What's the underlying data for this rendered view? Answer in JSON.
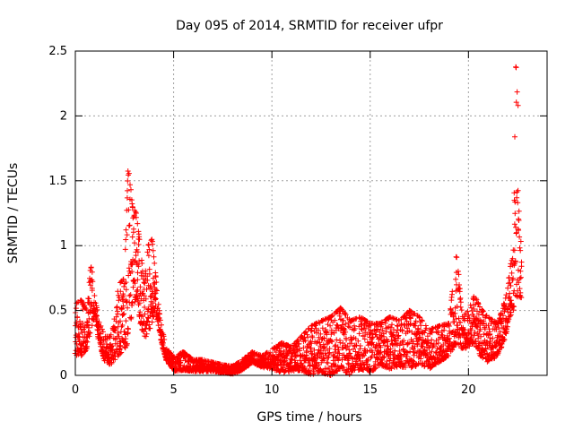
{
  "chart_data": {
    "type": "scatter",
    "title": "Day 095 of 2014, SRMTID for receiver ufpr",
    "xlabel": "GPS time / hours",
    "ylabel": "SRMTID / TECUs",
    "xlim": [
      0,
      24
    ],
    "ylim": [
      0,
      2.5
    ],
    "xticks": [
      0,
      5,
      10,
      15,
      20
    ],
    "yticks": [
      0,
      0.5,
      1,
      1.5,
      2,
      2.5
    ],
    "grid": true,
    "marker": "+",
    "series": [
      {
        "name": "SRMTID",
        "color": "#ff0000",
        "envelope": [
          [
            0.0,
            0.15,
            0.55
          ],
          [
            0.3,
            0.15,
            0.58
          ],
          [
            0.6,
            0.2,
            0.5
          ],
          [
            0.8,
            0.35,
            0.88
          ],
          [
            1.0,
            0.45,
            0.6
          ],
          [
            1.2,
            0.25,
            0.42
          ],
          [
            1.5,
            0.1,
            0.3
          ],
          [
            1.8,
            0.08,
            0.3
          ],
          [
            2.0,
            0.12,
            0.45
          ],
          [
            2.2,
            0.15,
            0.7
          ],
          [
            2.5,
            0.2,
            0.75
          ],
          [
            2.7,
            0.25,
            1.68
          ],
          [
            2.9,
            0.5,
            1.3
          ],
          [
            3.1,
            0.6,
            1.25
          ],
          [
            3.3,
            0.4,
            1.0
          ],
          [
            3.5,
            0.3,
            0.7
          ],
          [
            3.7,
            0.3,
            1.0
          ],
          [
            3.9,
            0.4,
            1.05
          ],
          [
            4.1,
            0.5,
            0.75
          ],
          [
            4.3,
            0.3,
            0.45
          ],
          [
            4.6,
            0.12,
            0.22
          ],
          [
            5.0,
            0.03,
            0.14
          ],
          [
            5.5,
            0.04,
            0.18
          ],
          [
            6.0,
            0.03,
            0.12
          ],
          [
            6.5,
            0.03,
            0.12
          ],
          [
            7.0,
            0.03,
            0.1
          ],
          [
            7.5,
            0.02,
            0.08
          ],
          [
            8.0,
            0.01,
            0.07
          ],
          [
            8.5,
            0.04,
            0.12
          ],
          [
            9.0,
            0.1,
            0.18
          ],
          [
            9.5,
            0.06,
            0.15
          ],
          [
            10.0,
            0.05,
            0.2
          ],
          [
            10.5,
            0.02,
            0.25
          ],
          [
            11.0,
            0.03,
            0.22
          ],
          [
            11.5,
            0.04,
            0.3
          ],
          [
            12.0,
            0.0,
            0.38
          ],
          [
            12.5,
            0.02,
            0.42
          ],
          [
            13.0,
            0.0,
            0.45
          ],
          [
            13.5,
            0.05,
            0.52
          ],
          [
            14.0,
            0.0,
            0.42
          ],
          [
            14.5,
            0.05,
            0.45
          ],
          [
            15.0,
            0.02,
            0.4
          ],
          [
            15.5,
            0.08,
            0.4
          ],
          [
            16.0,
            0.05,
            0.45
          ],
          [
            16.5,
            0.07,
            0.42
          ],
          [
            17.0,
            0.05,
            0.5
          ],
          [
            17.5,
            0.08,
            0.45
          ],
          [
            18.0,
            0.05,
            0.35
          ],
          [
            18.5,
            0.1,
            0.38
          ],
          [
            19.0,
            0.15,
            0.4
          ],
          [
            19.4,
            0.25,
            0.95
          ],
          [
            19.7,
            0.2,
            0.45
          ],
          [
            20.0,
            0.22,
            0.5
          ],
          [
            20.3,
            0.25,
            0.62
          ],
          [
            20.6,
            0.15,
            0.52
          ],
          [
            21.0,
            0.1,
            0.45
          ],
          [
            21.5,
            0.15,
            0.4
          ],
          [
            21.9,
            0.3,
            0.6
          ],
          [
            22.1,
            0.45,
            0.8
          ],
          [
            22.3,
            0.5,
            1.05
          ],
          [
            22.4,
            0.55,
            2.38
          ],
          [
            22.5,
            0.6,
            2.35
          ],
          [
            22.6,
            0.6,
            1.1
          ],
          [
            22.7,
            0.6,
            1.0
          ]
        ]
      }
    ]
  }
}
